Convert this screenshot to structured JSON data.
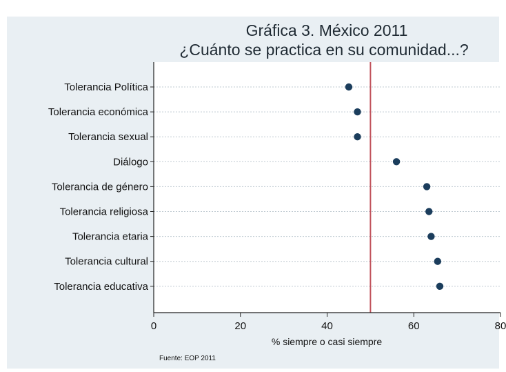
{
  "chart_data": {
    "type": "scatter",
    "title": "Gráfica 3. México 2011",
    "subtitle": "¿Cuánto se practica en su comunidad...?",
    "categories": [
      "Tolerancia Política",
      "Tolerancia económica",
      "Tolerancia sexual",
      "Diálogo",
      "Tolerancia de género",
      "Tolerancia religiosa",
      "Tolerancia etaria",
      "Tolerancia cultural",
      "Tolerancia educativa"
    ],
    "values": [
      45,
      47,
      47,
      56,
      63,
      63.5,
      64,
      65.5,
      66
    ],
    "xlabel": "% siempre o casi siempre",
    "xlim": [
      0,
      80
    ],
    "xticks": [
      "0",
      "20",
      "40",
      "60",
      "80"
    ],
    "reference_line": 50,
    "grid": "horizontal dotted",
    "source": "Fuente: EOP 2011",
    "colors": {
      "background": "#e9eff3",
      "plot_area": "#ffffff",
      "marker": "#1b3d5c",
      "reference_line": "#c0505a",
      "grid": "#bfc9d1"
    }
  }
}
